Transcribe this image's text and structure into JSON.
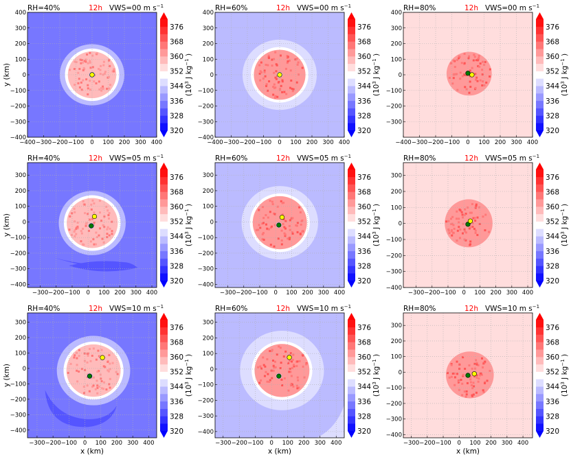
{
  "chart_data": {
    "type": "heatmap",
    "description": "3x3 grid of filled contour maps of moist static energy at 12h for varying RH and vertical wind shear",
    "colorbar": {
      "label": "(10^3 J kg^-1)",
      "levels": [
        320,
        324,
        328,
        332,
        336,
        340,
        344,
        348,
        352,
        356,
        360,
        364,
        368,
        372,
        376,
        380
      ],
      "tick_labels": [
        "320",
        "328",
        "336",
        "344",
        "352",
        "360",
        "368",
        "376"
      ],
      "extend": "both",
      "colormap": "bwr"
    },
    "xlabel": "x (km)",
    "ylabel": "y (km)",
    "grid": true,
    "panels": [
      {
        "row": 0,
        "col": 0,
        "rh": "RH=40%",
        "time": "12h",
        "vws": "VWS=00 m s",
        "background_level": 332,
        "xlim": [
          -400,
          400
        ],
        "ylim": [
          -400,
          400
        ],
        "xticks": [
          -400,
          -300,
          -200,
          -100,
          0,
          100,
          200,
          300,
          400
        ],
        "yticks": [
          -400,
          -300,
          -200,
          -100,
          0,
          100,
          200,
          300,
          400
        ],
        "green_center": [
          0,
          0
        ],
        "yellow_center": [
          0,
          0
        ],
        "core_radius_km": 150,
        "halo_radius_km": 200,
        "core_level": 356,
        "halo_level": 340
      },
      {
        "row": 0,
        "col": 1,
        "rh": "RH=60%",
        "time": "12h",
        "vws": "VWS=00 m s",
        "background_level": 340,
        "xlim": [
          -400,
          400
        ],
        "ylim": [
          -400,
          400
        ],
        "xticks": [
          -400,
          -300,
          -200,
          -100,
          0,
          100,
          200,
          300,
          400
        ],
        "yticks": [
          -400,
          -300,
          -200,
          -100,
          0,
          100,
          200,
          300,
          400
        ],
        "green_center": [
          0,
          0
        ],
        "yellow_center": [
          0,
          0
        ],
        "core_radius_km": 160,
        "halo_radius_km": 230,
        "core_level": 360,
        "halo_level": 344
      },
      {
        "row": 0,
        "col": 2,
        "rh": "RH=80%",
        "time": "12h",
        "vws": "VWS=00 m s",
        "background_level": 354,
        "xlim": [
          -400,
          400
        ],
        "ylim": [
          -400,
          400
        ],
        "xticks": [
          -400,
          -300,
          -200,
          -100,
          0,
          100,
          200,
          300,
          400
        ],
        "yticks": [
          -300,
          -200,
          -100,
          0,
          100,
          200,
          300,
          400
        ],
        "green_center": [
          0,
          10
        ],
        "yellow_center": [
          25,
          0
        ],
        "core_radius_km": 140,
        "halo_radius_km": 140,
        "core_level": 362,
        "halo_level": 358
      },
      {
        "row": 1,
        "col": 0,
        "rh": "RH=40%",
        "time": "12h",
        "vws": "VWS=05 m s",
        "background_level": 332,
        "xlim": [
          -380,
          430
        ],
        "ylim": [
          -420,
          380
        ],
        "xticks": [
          -300,
          -200,
          -100,
          0,
          100,
          200,
          300,
          400
        ],
        "yticks": [
          -400,
          -300,
          -200,
          -100,
          0,
          100,
          200,
          300
        ],
        "green_center": [
          20,
          -25
        ],
        "yellow_center": [
          40,
          35
        ],
        "core_radius_km": 160,
        "halo_radius_km": 210,
        "core_level": 356,
        "halo_level": 340
      },
      {
        "row": 1,
        "col": 1,
        "rh": "RH=60%",
        "time": "12h",
        "vws": "VWS=05 m s",
        "background_level": 340,
        "xlim": [
          -380,
          430
        ],
        "ylim": [
          -420,
          380
        ],
        "xticks": [
          -300,
          -200,
          -100,
          0,
          100,
          200,
          300,
          400
        ],
        "yticks": [
          -400,
          -300,
          -200,
          -100,
          0,
          100,
          200,
          300
        ],
        "green_center": [
          20,
          -20
        ],
        "yellow_center": [
          40,
          30
        ],
        "core_radius_km": 170,
        "halo_radius_km": 240,
        "core_level": 360,
        "halo_level": 344
      },
      {
        "row": 1,
        "col": 2,
        "rh": "RH=80%",
        "time": "12h",
        "vws": "VWS=05 m s",
        "background_level": 354,
        "xlim": [
          -380,
          430
        ],
        "ylim": [
          -400,
          380
        ],
        "xticks": [
          -300,
          -200,
          -100,
          0,
          100,
          200,
          300,
          400
        ],
        "yticks": [
          -400,
          -300,
          -200,
          -100,
          0,
          100,
          200,
          300
        ],
        "green_center": [
          25,
          -5
        ],
        "yellow_center": [
          40,
          15
        ],
        "core_radius_km": 150,
        "halo_radius_km": 150,
        "core_level": 362,
        "halo_level": 358
      },
      {
        "row": 2,
        "col": 0,
        "rh": "RH=40%",
        "time": "12h",
        "vws": "VWS=10 m s",
        "background_level": 332,
        "xlim": [
          -360,
          450
        ],
        "ylim": [
          -450,
          360
        ],
        "xticks": [
          -300,
          -200,
          -100,
          0,
          100,
          200,
          300,
          400
        ],
        "yticks": [
          -400,
          -300,
          -200,
          -100,
          0,
          100,
          200,
          300
        ],
        "green_center": [
          30,
          -50
        ],
        "yellow_center": [
          110,
          70
        ],
        "core_radius_km": 170,
        "halo_radius_km": 230,
        "core_level": 356,
        "halo_level": 340
      },
      {
        "row": 2,
        "col": 1,
        "rh": "RH=60%",
        "time": "12h",
        "vws": "VWS=10 m s",
        "background_level": 340,
        "xlim": [
          -350,
          450
        ],
        "ylim": [
          -440,
          360
        ],
        "xticks": [
          -300,
          -200,
          -100,
          0,
          100,
          200,
          300,
          400
        ],
        "yticks": [
          -400,
          -300,
          -200,
          -100,
          0,
          100,
          200,
          300
        ],
        "green_center": [
          45,
          -45
        ],
        "yellow_center": [
          110,
          75
        ],
        "core_radius_km": 170,
        "halo_radius_km": 260,
        "core_level": 360,
        "halo_level": 344
      },
      {
        "row": 2,
        "col": 2,
        "rh": "RH=80%",
        "time": "12h",
        "vws": "VWS=10 m s",
        "background_level": 354,
        "xlim": [
          -350,
          460
        ],
        "ylim": [
          -420,
          380
        ],
        "xticks": [
          -300,
          -200,
          -100,
          0,
          100,
          200,
          300,
          400
        ],
        "yticks": [
          -400,
          -300,
          -200,
          -100,
          0,
          100,
          200,
          300
        ],
        "green_center": [
          55,
          -20
        ],
        "yellow_center": [
          95,
          -10
        ],
        "core_radius_km": 150,
        "halo_radius_km": 150,
        "core_level": 362,
        "halo_level": 358
      }
    ]
  },
  "labels": {
    "vws_superscript": "−1",
    "cbar_label_main": "(10",
    "cbar_label_exp": "3",
    "cbar_label_unit": " J kg",
    "cbar_label_unit_exp": "−1",
    "cbar_label_close": " )"
  },
  "colors": {
    "time_label": "#ff0000",
    "green_marker": "#007a00",
    "yellow_marker": "#ffff00",
    "grid": "#b0b0b0"
  }
}
